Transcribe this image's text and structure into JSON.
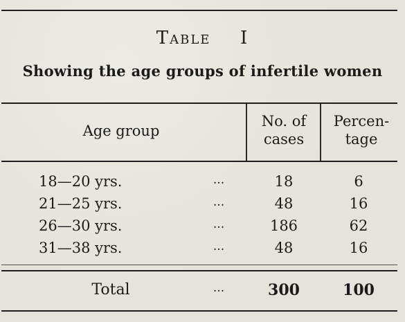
{
  "table": {
    "label": "Table",
    "number": "I",
    "caption": "Showing the age groups of infertile women",
    "headers": {
      "age_group": "Age group",
      "cases_line1": "No. of",
      "cases_line2": "cases",
      "pct_line1": "Percen-",
      "pct_line2": "tage"
    },
    "rows": [
      {
        "age": "18—20 yrs.",
        "dots": "...",
        "cases": "18",
        "percentage": "6"
      },
      {
        "age": "21—25 yrs.",
        "dots": "...",
        "cases": "48",
        "percentage": "16"
      },
      {
        "age": "26—30 yrs.",
        "dots": "...",
        "cases": "186",
        "percentage": "62"
      },
      {
        "age": "31—38 yrs.",
        "dots": "...",
        "cases": "48",
        "percentage": "16"
      }
    ],
    "total": {
      "label": "Total",
      "dots": "...",
      "cases": "300",
      "percentage": "100"
    }
  }
}
